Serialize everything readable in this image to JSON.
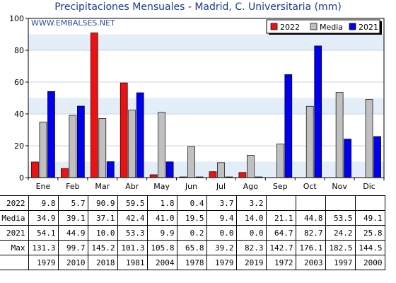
{
  "chart_data": {
    "type": "bar",
    "title": "Precipitaciones Mensuales - Madrid, C. Universitaria (mm)",
    "watermark": "WWW.EMBALSES.NET",
    "categories": [
      "Ene",
      "Feb",
      "Mar",
      "Abr",
      "May",
      "Jun",
      "Jul",
      "Ago",
      "Sep",
      "Oct",
      "Nov",
      "Dic"
    ],
    "ylim": [
      0,
      100
    ],
    "yticks": [
      0,
      20,
      40,
      60,
      80,
      100
    ],
    "grid": "horizontal bands",
    "legend_position": "top-right",
    "series": [
      {
        "name": "2022",
        "color": "#ee1111",
        "values": [
          9.8,
          5.7,
          90.9,
          59.5,
          1.8,
          0.4,
          3.7,
          3.2,
          null,
          null,
          null,
          null
        ]
      },
      {
        "name": "Media",
        "color": "#c0c0c0",
        "values": [
          34.9,
          39.1,
          37.1,
          42.4,
          41.0,
          19.5,
          9.4,
          14.0,
          21.1,
          44.8,
          53.5,
          49.1
        ]
      },
      {
        "name": "2021",
        "color": "#0000ee",
        "values": [
          54.1,
          44.9,
          10.0,
          53.3,
          9.9,
          0.2,
          0.0,
          0.0,
          64.7,
          82.7,
          24.2,
          25.8
        ]
      }
    ]
  },
  "table": {
    "rows": [
      {
        "label": "2022",
        "cells": [
          "9.8",
          "5.7",
          "90.9",
          "59.5",
          "1.8",
          "0.4",
          "3.7",
          "3.2",
          "",
          "",
          "",
          ""
        ]
      },
      {
        "label": "Media",
        "cells": [
          "34.9",
          "39.1",
          "37.1",
          "42.4",
          "41.0",
          "19.5",
          "9.4",
          "14.0",
          "21.1",
          "44.8",
          "53.5",
          "49.1"
        ]
      },
      {
        "label": "2021",
        "cells": [
          "54.1",
          "44.9",
          "10.0",
          "53.3",
          "9.9",
          "0.2",
          "0.0",
          "0.0",
          "64.7",
          "82.7",
          "24.2",
          "25.8"
        ]
      },
      {
        "label": "Max",
        "cells": [
          "131.3",
          "99.7",
          "145.2",
          "101.3",
          "105.8",
          "65.8",
          "39.2",
          "82.3",
          "142.7",
          "176.1",
          "182.5",
          "144.5"
        ]
      },
      {
        "label": "",
        "cells": [
          "1979",
          "2010",
          "2018",
          "1981",
          "2004",
          "1978",
          "1979",
          "2019",
          "1972",
          "2003",
          "1997",
          "2000"
        ]
      }
    ]
  }
}
